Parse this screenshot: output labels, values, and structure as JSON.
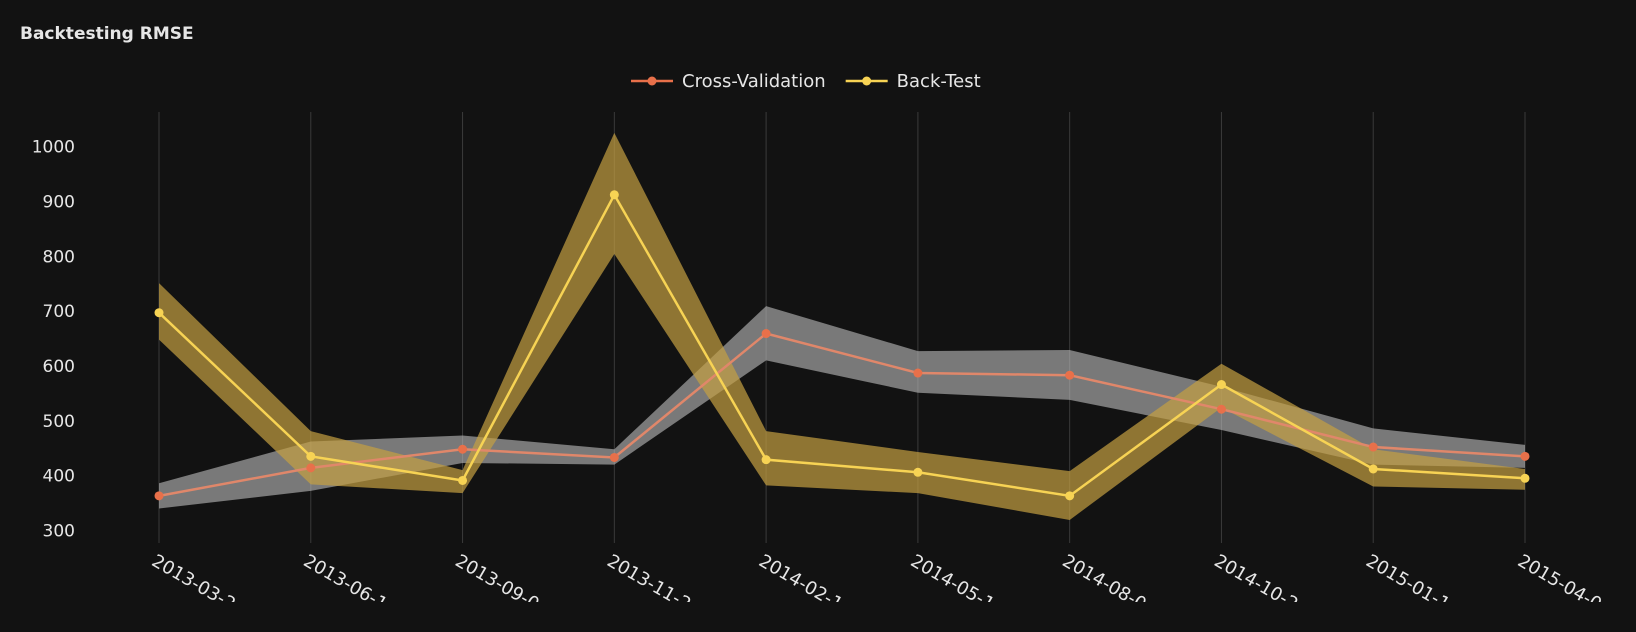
{
  "chart_data": {
    "type": "line",
    "title": "Backtesting RMSE",
    "categories": [
      "2013-03-2",
      "2013-06-1",
      "2013-09-0",
      "2013-11-2",
      "2014-02-1",
      "2014-05-1",
      "2014-08-0",
      "2014-10-2",
      "2015-01-1",
      "2015-04-0"
    ],
    "series": [
      {
        "name": "Cross-Validation",
        "color": "#e0876a",
        "marker_color": "#e8704a",
        "band_color": "rgba(190,190,190,0.6)",
        "values": [
          365,
          416,
          450,
          435,
          661,
          589,
          585,
          523,
          454,
          437
        ],
        "upper": [
          388,
          464,
          475,
          450,
          711,
          629,
          631,
          564,
          488,
          458
        ],
        "lower": [
          342,
          374,
          425,
          422,
          612,
          553,
          540,
          485,
          422,
          416
        ]
      },
      {
        "name": "Back-Test",
        "color": "#f7d354",
        "marker_color": "#f7d354",
        "band_color": "rgba(196,160,66,0.7)",
        "values": [
          699,
          437,
          393,
          914,
          431,
          408,
          365,
          568,
          414,
          397
        ],
        "upper": [
          753,
          483,
          412,
          1027,
          483,
          445,
          410,
          606,
          450,
          414
        ],
        "lower": [
          650,
          386,
          370,
          806,
          384,
          370,
          321,
          526,
          382,
          376
        ]
      }
    ],
    "ylim": [
      279,
      1065
    ],
    "yticks": [
      300,
      400,
      500,
      600,
      700,
      800,
      900,
      1000
    ],
    "grid": true
  }
}
